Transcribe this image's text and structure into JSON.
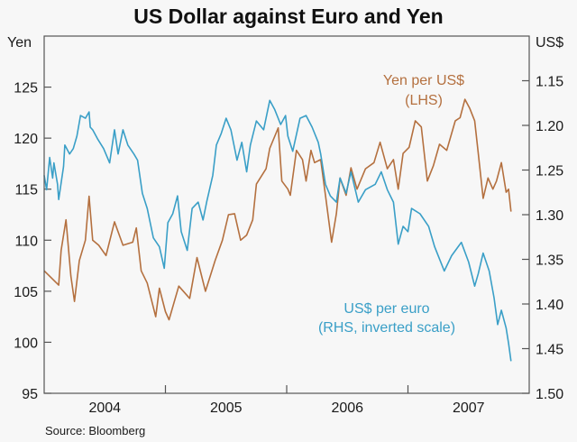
{
  "chart_data": {
    "type": "line",
    "title": "US Dollar against Euro and Yen",
    "source": "Source: Bloomberg",
    "left_axis": {
      "unit": "Yen",
      "ylim": [
        95,
        130
      ],
      "ticks": [
        "95",
        "100",
        "105",
        "110",
        "115",
        "120",
        "125"
      ],
      "tick_values": [
        95,
        100,
        105,
        110,
        115,
        120,
        125
      ]
    },
    "right_axis": {
      "unit": "US$",
      "ylim": [
        1.1,
        1.5
      ],
      "inverted": true,
      "ticks": [
        "1.15",
        "1.20",
        "1.25",
        "1.30",
        "1.35",
        "1.40",
        "1.45",
        "1.50"
      ],
      "tick_values": [
        1.15,
        1.2,
        1.25,
        1.3,
        1.35,
        1.4,
        1.45,
        1.5
      ]
    },
    "x_axis": {
      "xlim": [
        2004,
        2008
      ],
      "labels": [
        "2004",
        "2005",
        "2006",
        "2007"
      ],
      "label_years": [
        2004,
        2005,
        2006,
        2007
      ]
    },
    "grid": false,
    "colors": {
      "yen": "#b4703f",
      "euro": "#3a9fc7",
      "axis": "#555555",
      "background": "#f7f7f7"
    },
    "series": [
      {
        "name": "Yen per US$",
        "note": "(LHS)",
        "axis": "left",
        "color": "#b4703f",
        "points": [
          [
            2004.0,
            107.0
          ],
          [
            2004.12,
            105.6
          ],
          [
            2004.14,
            109.0
          ],
          [
            2004.18,
            112.0
          ],
          [
            2004.22,
            106.5
          ],
          [
            2004.25,
            104.0
          ],
          [
            2004.29,
            108.0
          ],
          [
            2004.34,
            110.0
          ],
          [
            2004.37,
            114.3
          ],
          [
            2004.4,
            110.0
          ],
          [
            2004.45,
            109.5
          ],
          [
            2004.51,
            108.5
          ],
          [
            2004.58,
            111.8
          ],
          [
            2004.65,
            109.5
          ],
          [
            2004.73,
            109.8
          ],
          [
            2004.76,
            111.2
          ],
          [
            2004.8,
            107.0
          ],
          [
            2004.85,
            105.8
          ],
          [
            2004.92,
            102.5
          ],
          [
            2004.95,
            105.3
          ],
          [
            2005.0,
            103.0
          ],
          [
            2005.03,
            102.2
          ],
          [
            2005.11,
            105.5
          ],
          [
            2005.2,
            104.3
          ],
          [
            2005.26,
            108.3
          ],
          [
            2005.33,
            105.0
          ],
          [
            2005.41,
            108.0
          ],
          [
            2005.47,
            110.0
          ],
          [
            2005.52,
            112.5
          ],
          [
            2005.57,
            112.6
          ],
          [
            2005.62,
            110.0
          ],
          [
            2005.67,
            110.5
          ],
          [
            2005.72,
            112.0
          ],
          [
            2005.75,
            115.5
          ],
          [
            2005.83,
            117.0
          ],
          [
            2005.86,
            119.0
          ],
          [
            2005.93,
            121.0
          ],
          [
            2005.96,
            115.8
          ],
          [
            2006.01,
            115.0
          ],
          [
            2006.03,
            114.4
          ],
          [
            2006.08,
            118.8
          ],
          [
            2006.13,
            117.9
          ],
          [
            2006.16,
            115.8
          ],
          [
            2006.2,
            118.8
          ],
          [
            2006.23,
            117.6
          ],
          [
            2006.28,
            117.9
          ],
          [
            2006.32,
            114.4
          ],
          [
            2006.37,
            109.8
          ],
          [
            2006.41,
            112.6
          ],
          [
            2006.44,
            116.1
          ],
          [
            2006.49,
            114.4
          ],
          [
            2006.53,
            117.1
          ],
          [
            2006.58,
            115.0
          ],
          [
            2006.65,
            117.0
          ],
          [
            2006.72,
            117.6
          ],
          [
            2006.77,
            119.6
          ],
          [
            2006.83,
            117.0
          ],
          [
            2006.88,
            117.9
          ],
          [
            2006.92,
            115.0
          ],
          [
            2006.96,
            118.5
          ],
          [
            2007.01,
            119.1
          ],
          [
            2007.06,
            121.7
          ],
          [
            2007.11,
            121.1
          ],
          [
            2007.16,
            115.8
          ],
          [
            2007.21,
            117.3
          ],
          [
            2007.26,
            119.4
          ],
          [
            2007.32,
            118.8
          ],
          [
            2007.39,
            121.7
          ],
          [
            2007.43,
            122.0
          ],
          [
            2007.47,
            123.8
          ],
          [
            2007.51,
            122.9
          ],
          [
            2007.55,
            121.7
          ],
          [
            2007.58,
            118.5
          ],
          [
            2007.62,
            114.1
          ],
          [
            2007.66,
            116.1
          ],
          [
            2007.7,
            115.0
          ],
          [
            2007.73,
            115.8
          ],
          [
            2007.77,
            117.6
          ],
          [
            2007.81,
            114.7
          ],
          [
            2007.83,
            115.0
          ],
          [
            2007.85,
            112.8
          ]
        ]
      },
      {
        "name": "US$ per euro",
        "note": "(RHS, inverted scale)",
        "axis": "right",
        "color": "#3a9fc7",
        "points": [
          [
            2004.0,
            1.256
          ],
          [
            2004.02,
            1.272
          ],
          [
            2004.045,
            1.236
          ],
          [
            2004.07,
            1.259
          ],
          [
            2004.08,
            1.242
          ],
          [
            2004.11,
            1.266
          ],
          [
            2004.12,
            1.283
          ],
          [
            2004.16,
            1.246
          ],
          [
            2004.17,
            1.222
          ],
          [
            2004.21,
            1.232
          ],
          [
            2004.24,
            1.226
          ],
          [
            2004.27,
            1.212
          ],
          [
            2004.3,
            1.189
          ],
          [
            2004.34,
            1.192
          ],
          [
            2004.37,
            1.185
          ],
          [
            2004.38,
            1.202
          ],
          [
            2004.4,
            1.205
          ],
          [
            2004.44,
            1.215
          ],
          [
            2004.49,
            1.226
          ],
          [
            2004.54,
            1.242
          ],
          [
            2004.58,
            1.205
          ],
          [
            2004.61,
            1.232
          ],
          [
            2004.65,
            1.205
          ],
          [
            2004.69,
            1.222
          ],
          [
            2004.74,
            1.232
          ],
          [
            2004.77,
            1.239
          ],
          [
            2004.81,
            1.276
          ],
          [
            2004.85,
            1.293
          ],
          [
            2004.9,
            1.326
          ],
          [
            2004.95,
            1.336
          ],
          [
            2004.99,
            1.36
          ],
          [
            2005.02,
            1.309
          ],
          [
            2005.06,
            1.299
          ],
          [
            2005.1,
            1.279
          ],
          [
            2005.13,
            1.319
          ],
          [
            2005.18,
            1.34
          ],
          [
            2005.22,
            1.293
          ],
          [
            2005.27,
            1.286
          ],
          [
            2005.31,
            1.306
          ],
          [
            2005.34,
            1.286
          ],
          [
            2005.39,
            1.256
          ],
          [
            2005.42,
            1.222
          ],
          [
            2005.46,
            1.209
          ],
          [
            2005.5,
            1.192
          ],
          [
            2005.54,
            1.205
          ],
          [
            2005.59,
            1.239
          ],
          [
            2005.63,
            1.219
          ],
          [
            2005.67,
            1.252
          ],
          [
            2005.7,
            1.222
          ],
          [
            2005.75,
            1.195
          ],
          [
            2005.81,
            1.205
          ],
          [
            2005.86,
            1.172
          ],
          [
            2005.9,
            1.182
          ],
          [
            2005.95,
            1.199
          ],
          [
            2005.99,
            1.189
          ],
          [
            2006.01,
            1.212
          ],
          [
            2006.05,
            1.229
          ],
          [
            2006.11,
            1.192
          ],
          [
            2006.16,
            1.189
          ],
          [
            2006.21,
            1.202
          ],
          [
            2006.26,
            1.219
          ],
          [
            2006.28,
            1.232
          ],
          [
            2006.32,
            1.266
          ],
          [
            2006.36,
            1.279
          ],
          [
            2006.41,
            1.286
          ],
          [
            2006.44,
            1.259
          ],
          [
            2006.49,
            1.276
          ],
          [
            2006.53,
            1.252
          ],
          [
            2006.59,
            1.286
          ],
          [
            2006.65,
            1.272
          ],
          [
            2006.73,
            1.266
          ],
          [
            2006.78,
            1.252
          ],
          [
            2006.83,
            1.272
          ],
          [
            2006.88,
            1.286
          ],
          [
            2006.92,
            1.333
          ],
          [
            2006.96,
            1.313
          ],
          [
            2007.0,
            1.319
          ],
          [
            2007.03,
            1.293
          ],
          [
            2007.1,
            1.299
          ],
          [
            2007.17,
            1.313
          ],
          [
            2007.22,
            1.336
          ],
          [
            2007.3,
            1.363
          ],
          [
            2007.36,
            1.346
          ],
          [
            2007.44,
            1.331
          ],
          [
            2007.5,
            1.353
          ],
          [
            2007.55,
            1.38
          ],
          [
            2007.58,
            1.366
          ],
          [
            2007.62,
            1.343
          ],
          [
            2007.67,
            1.363
          ],
          [
            2007.71,
            1.393
          ],
          [
            2007.74,
            1.423
          ],
          [
            2007.77,
            1.407
          ],
          [
            2007.81,
            1.427
          ],
          [
            2007.83,
            1.444
          ],
          [
            2007.85,
            1.464
          ]
        ]
      }
    ]
  }
}
